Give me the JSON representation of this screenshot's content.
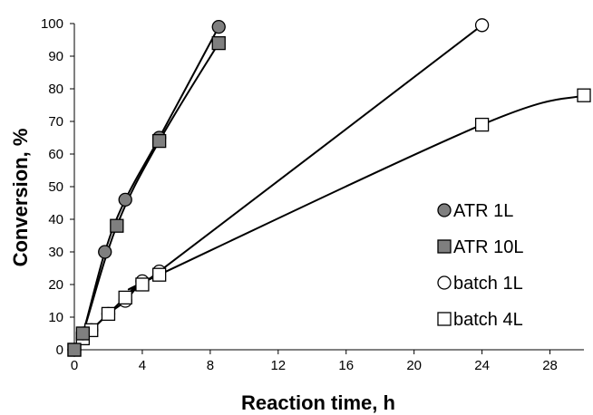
{
  "chart_data": {
    "type": "line",
    "xlabel": "Reaction time, h",
    "ylabel": "Conversion, %",
    "xlim": [
      0,
      30
    ],
    "ylim": [
      0,
      100
    ],
    "x_ticks": [
      0,
      4,
      8,
      12,
      16,
      20,
      24,
      28
    ],
    "y_ticks": [
      0,
      10,
      20,
      30,
      40,
      50,
      60,
      70,
      80,
      90,
      100
    ],
    "grid": false,
    "legend_position": "right",
    "series": [
      {
        "name": "ATR 1L",
        "marker": "circle",
        "fill": "#7f7f7f",
        "x": [
          0,
          0.5,
          1.8,
          3,
          5,
          8.5
        ],
        "y": [
          0,
          5,
          30,
          46,
          65,
          99
        ]
      },
      {
        "name": "ATR 10L",
        "marker": "square",
        "fill": "#7f7f7f",
        "x": [
          0,
          0.5,
          2.5,
          5,
          8.5
        ],
        "y": [
          0,
          5,
          38,
          64,
          94
        ]
      },
      {
        "name": "batch 1L",
        "marker": "circle",
        "fill": "#ffffff",
        "x": [
          0,
          0.5,
          1,
          2,
          3,
          4,
          5,
          24
        ],
        "y": [
          0,
          3.5,
          6,
          11,
          15,
          21,
          24,
          99.5
        ]
      },
      {
        "name": "batch 4L",
        "marker": "square",
        "fill": "#ffffff",
        "x": [
          0,
          0.5,
          1,
          2,
          3,
          4,
          5,
          24,
          30
        ],
        "y": [
          0,
          3.5,
          6,
          11,
          16,
          20,
          23,
          69,
          78
        ]
      }
    ]
  }
}
